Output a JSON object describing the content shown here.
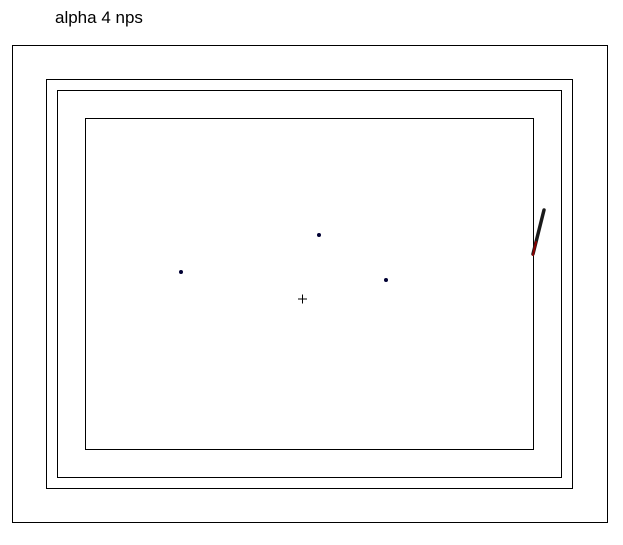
{
  "title": "alpha 4 nps",
  "colors": {
    "frame": "#000000",
    "dot": "#000033",
    "crosshair": "#000000",
    "probe_body": "#1a1a1a",
    "probe_tip": "#8b0000"
  },
  "markers": {
    "dot_count": 3,
    "crosshair_count": 1,
    "probe_count": 1
  }
}
